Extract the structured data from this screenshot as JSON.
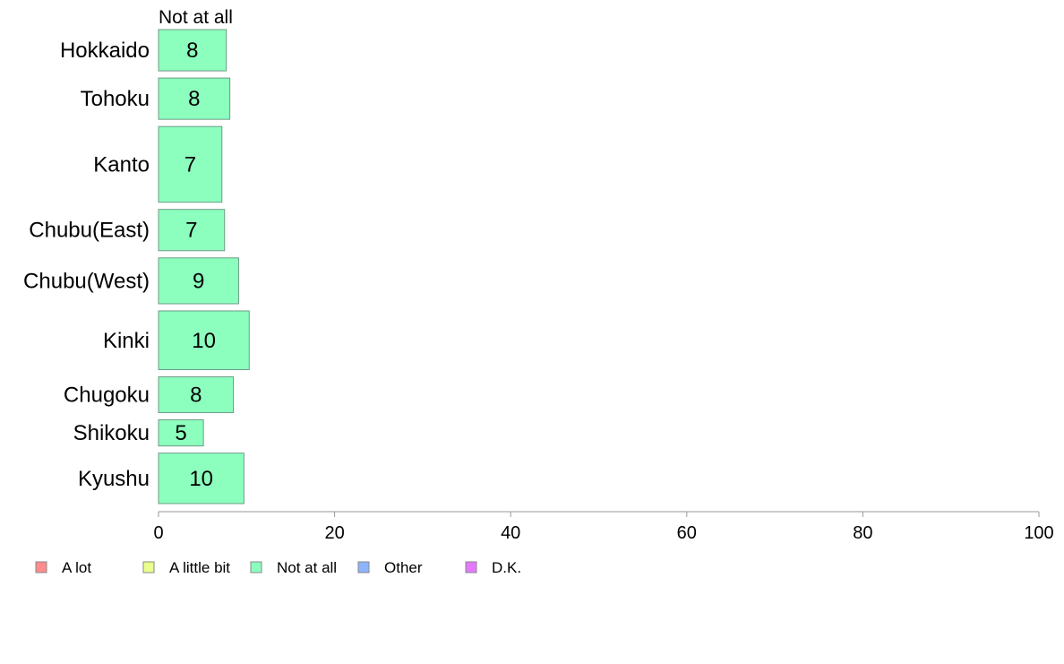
{
  "chart_data": {
    "type": "bar",
    "orientation": "horizontal",
    "column_header": "Not at all",
    "categories": [
      "Hokkaido",
      "Tohoku",
      "Kanto",
      "Chubu(East)",
      "Chubu(West)",
      "Kinki",
      "Chugoku",
      "Shikoku",
      "Kyushu"
    ],
    "series": [
      {
        "name": "A lot",
        "color": "#ff8c8c",
        "values": [
          0,
          0,
          0,
          0,
          0,
          0,
          0,
          0,
          0
        ]
      },
      {
        "name": "A little bit",
        "color": "#e8ff8c",
        "values": [
          0,
          0,
          0,
          0,
          0,
          0,
          0,
          0,
          0
        ]
      },
      {
        "name": "Not at all",
        "color": "#8cffbe",
        "values": [
          7.7,
          8.1,
          7.2,
          7.5,
          9.1,
          10.3,
          8.5,
          5.1,
          9.7
        ],
        "labels": [
          "8",
          "8",
          "7",
          "7",
          "9",
          "10",
          "8",
          "5",
          "10"
        ]
      },
      {
        "name": "Other",
        "color": "#8cb4ff",
        "values": [
          0,
          0,
          0,
          0,
          0,
          0,
          0,
          0,
          0
        ]
      },
      {
        "name": "D.K.",
        "color": "#e678ff",
        "values": [
          0,
          0,
          0,
          0,
          0,
          0,
          0,
          0,
          0
        ]
      }
    ],
    "relative_weights": [
      0.9,
      0.9,
      1.65,
      0.9,
      1.0,
      1.28,
      0.78,
      0.57,
      1.1
    ],
    "xlim": [
      0,
      100
    ],
    "xticks": [
      "0",
      "20",
      "40",
      "60",
      "80",
      "100"
    ],
    "legend": [
      "A lot",
      "A little bit",
      "Not at all",
      "Other",
      "D.K."
    ],
    "legend_position": "bottom-left",
    "grid": false
  }
}
